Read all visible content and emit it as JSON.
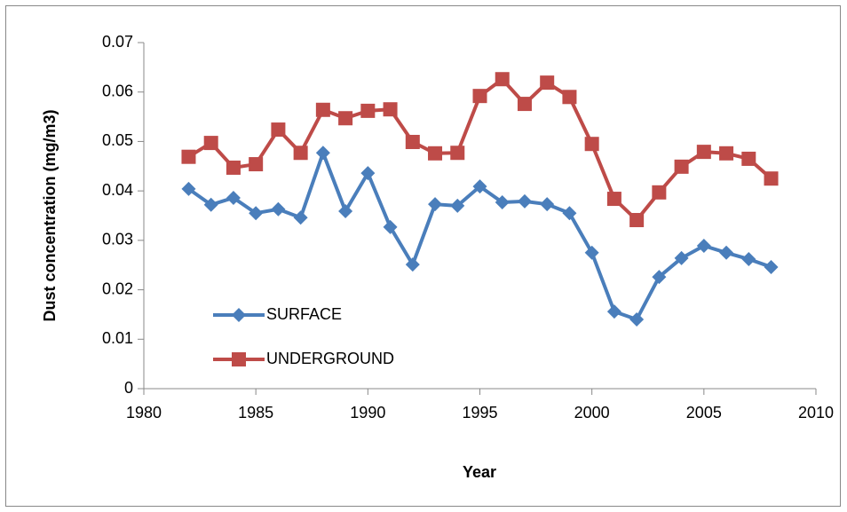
{
  "chart_data": {
    "type": "line",
    "x_label": "Year",
    "y_label": "Dust concentration (mg/m3)",
    "x": [
      1982,
      1983,
      1984,
      1985,
      1986,
      1987,
      1988,
      1989,
      1990,
      1991,
      1992,
      1993,
      1994,
      1995,
      1996,
      1997,
      1998,
      1999,
      2000,
      2001,
      2002,
      2003,
      2004,
      2005,
      2006,
      2007,
      2008
    ],
    "series": [
      {
        "name": "SURFACE",
        "color": "#4a7ebb",
        "marker": "diamond",
        "values": [
          0.0404,
          0.0372,
          0.0386,
          0.0355,
          0.0363,
          0.0346,
          0.0477,
          0.0359,
          0.0436,
          0.0327,
          0.0251,
          0.0373,
          0.037,
          0.0409,
          0.0377,
          0.0379,
          0.0373,
          0.0355,
          0.0275,
          0.0156,
          0.014,
          0.0226,
          0.0264,
          0.0289,
          0.0275,
          0.0262,
          0.0246
        ]
      },
      {
        "name": "UNDERGROUND",
        "color": "#be4b48",
        "marker": "square",
        "values": [
          0.0469,
          0.0497,
          0.0447,
          0.0454,
          0.0524,
          0.0477,
          0.0564,
          0.0547,
          0.0562,
          0.0565,
          0.0499,
          0.0476,
          0.0477,
          0.0592,
          0.0626,
          0.0576,
          0.0619,
          0.059,
          0.0495,
          0.0384,
          0.0341,
          0.0397,
          0.0449,
          0.0479,
          0.0476,
          0.0465,
          0.0425
        ]
      }
    ],
    "xlim": [
      1980,
      2010
    ],
    "xticks": [
      1980,
      1985,
      1990,
      1995,
      2000,
      2005,
      2010
    ],
    "ylim": [
      0,
      0.07
    ],
    "yticks": [
      0,
      0.01,
      0.02,
      0.03,
      0.04,
      0.05,
      0.06,
      0.07
    ],
    "grid": false,
    "legend": "lower left"
  }
}
